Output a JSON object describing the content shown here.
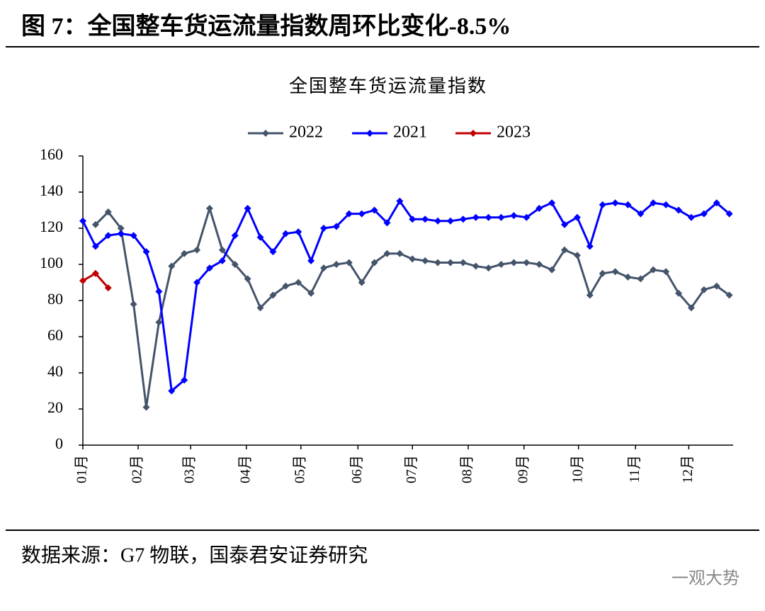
{
  "figure_title": "图 7：全国整车货运流量指数周环比变化-8.5%",
  "source": "数据来源：G7 物联，国泰君安证券研究",
  "watermark": "一观大势",
  "chart_data": {
    "type": "line",
    "title": "全国整车货运流量指数",
    "x": [
      0,
      1,
      2,
      3,
      4,
      5,
      6,
      7,
      8,
      9,
      10,
      11,
      12,
      13,
      14,
      15,
      16,
      17,
      18,
      19,
      20,
      21,
      22,
      23,
      24,
      25,
      26,
      27,
      28,
      29,
      30,
      31,
      32,
      33,
      34,
      35,
      36,
      37,
      38,
      39,
      40,
      41,
      42,
      43,
      44,
      45,
      46,
      47,
      48,
      49,
      50,
      51
    ],
    "series": [
      {
        "name": "2022",
        "color": "#44546a",
        "values": [
          null,
          122,
          129,
          120,
          78,
          21,
          68,
          99,
          106,
          108,
          131,
          108,
          100,
          92,
          76,
          83,
          88,
          90,
          84,
          98,
          100,
          101,
          90,
          101,
          106,
          106,
          103,
          102,
          101,
          101,
          101,
          99,
          98,
          100,
          101,
          101,
          100,
          97,
          108,
          105,
          83,
          95,
          96,
          93,
          92,
          97,
          96,
          84,
          76,
          86,
          88,
          83
        ]
      },
      {
        "name": "2021",
        "color": "#0000ff",
        "values": [
          124,
          110,
          116,
          117,
          116,
          107,
          85,
          30,
          36,
          90,
          98,
          102,
          116,
          131,
          115,
          107,
          117,
          118,
          102,
          120,
          121,
          128,
          128,
          130,
          123,
          135,
          125,
          125,
          124,
          124,
          125,
          126,
          126,
          126,
          127,
          126,
          131,
          134,
          122,
          126,
          110,
          133,
          134,
          133,
          128,
          134,
          133,
          130,
          126,
          128,
          134,
          128
        ]
      },
      {
        "name": "2023",
        "color": "#c00000",
        "values": [
          91,
          95,
          87,
          null,
          null,
          null,
          null,
          null,
          null,
          null,
          null,
          null,
          null,
          null,
          null,
          null,
          null,
          null,
          null,
          null,
          null,
          null,
          null,
          null,
          null,
          null,
          null,
          null,
          null,
          null,
          null,
          null,
          null,
          null,
          null,
          null,
          null,
          null,
          null,
          null,
          null,
          null,
          null,
          null,
          null,
          null,
          null,
          null,
          null,
          null,
          null,
          null
        ]
      }
    ],
    "xlim": [
      0,
      51.3
    ],
    "xticks": [
      {
        "value": 0,
        "label": "01月"
      },
      {
        "value": 4.36,
        "label": "02月"
      },
      {
        "value": 8.5,
        "label": "03月"
      },
      {
        "value": 12.9,
        "label": "04月"
      },
      {
        "value": 17.2,
        "label": "05月"
      },
      {
        "value": 21.7,
        "label": "06月"
      },
      {
        "value": 26.0,
        "label": "07月"
      },
      {
        "value": 30.4,
        "label": "08月"
      },
      {
        "value": 34.8,
        "label": "09月"
      },
      {
        "value": 39.1,
        "label": "10月"
      },
      {
        "value": 43.6,
        "label": "11月"
      },
      {
        "value": 47.8,
        "label": "12月"
      }
    ],
    "ylim": [
      0,
      160
    ],
    "yticks": [
      0,
      20,
      40,
      60,
      80,
      100,
      120,
      140,
      160
    ],
    "grid": false,
    "legend": "top"
  }
}
